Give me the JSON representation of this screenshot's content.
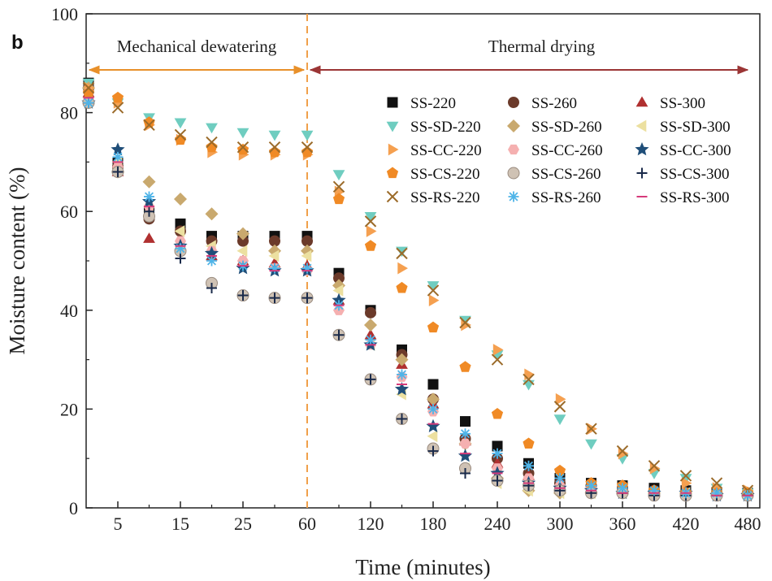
{
  "chart_data": {
    "type": "scatter",
    "panel_label": "b",
    "xlabel": "Time (minutes)",
    "ylabel": "Moisture content (%)",
    "ylim": [
      0,
      100
    ],
    "y_ticks": [
      "0",
      "20",
      "40",
      "60",
      "80",
      "100"
    ],
    "x_ticks": [
      "5",
      "15",
      "25",
      "60",
      "120",
      "180",
      "240",
      "300",
      "360",
      "420",
      "480"
    ],
    "x_tick_times": [
      5,
      15,
      25,
      60,
      120,
      180,
      240,
      300,
      360,
      420,
      480
    ],
    "divider_time": 60,
    "regions": [
      {
        "label": "Mechanical dewatering",
        "color": "#e8902a"
      },
      {
        "label": "Thermal drying",
        "color": "#9b3535"
      }
    ],
    "divider_color": "#f0a04a",
    "series": [
      {
        "name": "SS-220",
        "marker": "square",
        "color": "#111111",
        "x": [
          0,
          5,
          10,
          15,
          20,
          25,
          30,
          60,
          90,
          120,
          150,
          180,
          210,
          240,
          270,
          300,
          330,
          360,
          390,
          420,
          450,
          480
        ],
        "y": [
          86,
          70,
          60,
          57.5,
          55,
          55,
          55,
          55,
          47.5,
          40,
          32,
          25,
          17.5,
          12.5,
          9,
          6,
          5,
          4.5,
          4,
          3.5,
          3,
          3
        ]
      },
      {
        "name": "SS-260",
        "marker": "circle",
        "color": "#6b3a2a",
        "x": [
          0,
          5,
          10,
          15,
          20,
          25,
          30,
          60,
          90,
          120,
          150,
          180,
          210,
          240,
          270,
          300,
          330,
          360,
          390,
          420,
          450,
          480
        ],
        "y": [
          85,
          69,
          58.5,
          56,
          54,
          54,
          54,
          54,
          46.5,
          39.5,
          31,
          22,
          14,
          10,
          7,
          5,
          4.5,
          4,
          3.5,
          3,
          3,
          3
        ]
      },
      {
        "name": "SS-300",
        "marker": "triangle-up",
        "color": "#b03030",
        "x": [
          0,
          5,
          10,
          15,
          20,
          25,
          30,
          60,
          90,
          120,
          150,
          180,
          210,
          240,
          270,
          300,
          330,
          360,
          390,
          420,
          450,
          480
        ],
        "y": [
          84,
          68,
          54.5,
          53,
          51,
          50,
          49.5,
          49,
          42,
          35,
          29,
          21,
          13.5,
          9,
          6.5,
          5,
          4,
          3.5,
          3,
          3,
          3,
          3
        ]
      },
      {
        "name": "SS-SD-220",
        "marker": "triangle-down",
        "color": "#6fcdc0",
        "x": [
          0,
          5,
          10,
          15,
          20,
          25,
          30,
          60,
          90,
          120,
          150,
          180,
          210,
          240,
          270,
          300,
          330,
          360,
          390,
          420,
          450,
          480
        ],
        "y": [
          86,
          82,
          79,
          78,
          77,
          76,
          75.5,
          75.5,
          67.5,
          59,
          52,
          45,
          38,
          31,
          25,
          18,
          13,
          10,
          7,
          6,
          4,
          3
        ]
      },
      {
        "name": "SS-SD-260",
        "marker": "diamond",
        "color": "#c9a96e",
        "x": [
          0,
          5,
          10,
          15,
          20,
          25,
          30,
          60,
          90,
          120,
          150,
          180,
          210,
          240,
          270,
          300,
          330,
          360,
          390,
          420,
          450,
          480
        ],
        "y": [
          85,
          68,
          66,
          62.5,
          59.5,
          55.5,
          52,
          52,
          45,
          37,
          30,
          22,
          13,
          6,
          3.5,
          3,
          3,
          3,
          3,
          3,
          3,
          3
        ]
      },
      {
        "name": "SS-SD-300",
        "marker": "triangle-left",
        "color": "#ece0a0",
        "x": [
          0,
          5,
          10,
          15,
          20,
          25,
          30,
          60,
          90,
          120,
          150,
          180,
          210,
          240,
          270,
          300,
          330,
          360,
          390,
          420,
          450,
          480
        ],
        "y": [
          83,
          70,
          60,
          56,
          53,
          52,
          51,
          51,
          44,
          33,
          23,
          14.5,
          8,
          5,
          3.5,
          3,
          3,
          3,
          3,
          3,
          3,
          3
        ]
      },
      {
        "name": "SS-CC-220",
        "marker": "triangle-right",
        "color": "#f5a050",
        "x": [
          0,
          5,
          10,
          15,
          20,
          25,
          30,
          60,
          90,
          120,
          150,
          180,
          210,
          240,
          270,
          300,
          330,
          360,
          390,
          420,
          450,
          480
        ],
        "y": [
          85,
          82,
          77.5,
          74.5,
          72,
          71.5,
          71.5,
          71.5,
          64,
          56,
          48.5,
          42,
          37,
          32,
          27,
          22,
          16,
          11,
          8,
          5,
          4,
          3.5
        ]
      },
      {
        "name": "SS-CC-260",
        "marker": "hexagon",
        "color": "#f5b0b0",
        "x": [
          0,
          5,
          10,
          15,
          20,
          25,
          30,
          60,
          90,
          120,
          150,
          180,
          210,
          240,
          270,
          300,
          330,
          360,
          390,
          420,
          450,
          480
        ],
        "y": [
          84,
          69,
          61,
          54,
          52,
          50,
          48.5,
          48,
          40,
          33,
          26.5,
          19.5,
          13,
          8,
          6,
          4.5,
          4,
          3.5,
          3,
          3,
          2.5,
          2.5
        ]
      },
      {
        "name": "SS-CC-300",
        "marker": "star",
        "color": "#1f4e79",
        "x": [
          0,
          5,
          10,
          15,
          20,
          25,
          30,
          60,
          90,
          120,
          150,
          180,
          210,
          240,
          270,
          300,
          330,
          360,
          390,
          420,
          450,
          480
        ],
        "y": [
          82,
          72.5,
          62,
          53,
          51.5,
          48.5,
          48,
          48,
          42,
          33,
          24,
          16.5,
          10.5,
          7,
          5,
          4,
          3.5,
          3,
          3,
          3,
          2.5,
          2.5
        ]
      },
      {
        "name": "SS-CS-220",
        "marker": "pentagon",
        "color": "#f08a25",
        "x": [
          0,
          5,
          10,
          15,
          20,
          25,
          30,
          60,
          90,
          120,
          150,
          180,
          210,
          240,
          270,
          300,
          330,
          360,
          390,
          420,
          450,
          480
        ],
        "y": [
          84,
          83,
          78,
          74.5,
          73,
          72.5,
          72,
          72,
          62.5,
          53,
          44.5,
          36.5,
          28.5,
          19,
          13,
          7.5,
          5,
          4.5,
          3.5,
          3,
          3,
          3
        ]
      },
      {
        "name": "SS-CS-260",
        "marker": "sphere",
        "color": "#cfc2b4",
        "x": [
          0,
          5,
          10,
          15,
          20,
          25,
          30,
          60,
          90,
          120,
          150,
          180,
          210,
          240,
          270,
          300,
          330,
          360,
          390,
          420,
          450,
          480
        ],
        "y": [
          82,
          68,
          59,
          52,
          45.5,
          43,
          42.5,
          42.5,
          35,
          26,
          18,
          12,
          8,
          5.5,
          4.5,
          3.5,
          3,
          3,
          2.5,
          2.5,
          2.5,
          2.5
        ]
      },
      {
        "name": "SS-CS-300",
        "marker": "plus",
        "color": "#1a2a4a",
        "x": [
          0,
          5,
          10,
          15,
          20,
          25,
          30,
          60,
          90,
          120,
          150,
          180,
          210,
          240,
          270,
          300,
          330,
          360,
          390,
          420,
          450,
          480
        ],
        "y": [
          82,
          68,
          60,
          50.5,
          44.5,
          43,
          42.5,
          42.5,
          35,
          26,
          18,
          11.5,
          7,
          5.5,
          4.5,
          3.5,
          3,
          3,
          2.5,
          2.5,
          2.5,
          2.5
        ]
      },
      {
        "name": "SS-RS-220",
        "marker": "x",
        "color": "#9b6b2a",
        "x": [
          0,
          5,
          10,
          15,
          20,
          25,
          30,
          60,
          90,
          120,
          150,
          180,
          210,
          240,
          270,
          300,
          330,
          360,
          390,
          420,
          450,
          480
        ],
        "y": [
          85,
          81,
          77.5,
          75.5,
          74,
          73,
          73,
          73,
          65,
          58,
          51.5,
          44,
          37.5,
          30,
          26,
          20.5,
          16,
          11.5,
          8.5,
          6.5,
          5,
          3.5
        ]
      },
      {
        "name": "SS-RS-260",
        "marker": "asterisk",
        "color": "#4fb4e8",
        "x": [
          0,
          5,
          10,
          15,
          20,
          25,
          30,
          60,
          90,
          120,
          150,
          180,
          210,
          240,
          270,
          300,
          330,
          360,
          390,
          420,
          450,
          480
        ],
        "y": [
          82,
          71,
          63,
          52.5,
          50,
          49,
          48.5,
          48.5,
          41,
          34,
          27,
          20,
          15,
          11,
          8.5,
          6,
          4.5,
          4,
          3.5,
          3,
          3,
          2.5
        ]
      },
      {
        "name": "SS-RS-300",
        "marker": "dash",
        "color": "#d63a7a",
        "x": [
          0,
          5,
          10,
          15,
          20,
          25,
          30,
          60,
          90,
          120,
          150,
          180,
          210,
          240,
          270,
          300,
          330,
          360,
          390,
          420,
          450,
          480
        ],
        "y": [
          83,
          70,
          61,
          53,
          51,
          49,
          48,
          48,
          41,
          33,
          25,
          17,
          11,
          7,
          5,
          4,
          3.5,
          3,
          3,
          3,
          2.5,
          2.5
        ]
      }
    ]
  }
}
